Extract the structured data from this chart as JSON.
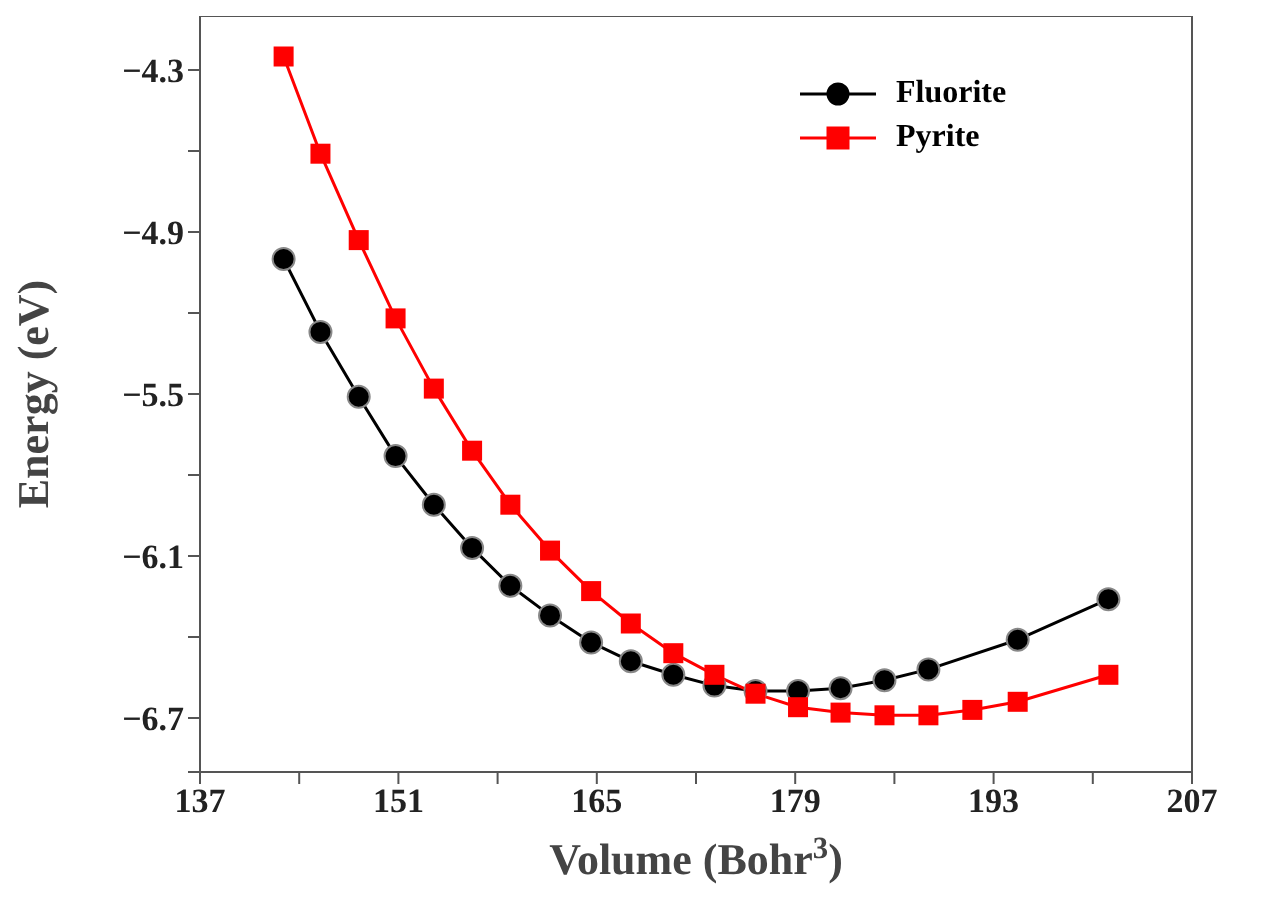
{
  "chart_data": {
    "type": "line",
    "xlabel": "Volume (Bohr$^{3}$)",
    "ylabel": "Energy (eV)",
    "xlim": [
      137,
      207
    ],
    "ylim": [
      -6.9,
      -4.1
    ],
    "xticks": [
      137,
      {
        "value": 144,
        "label": null
      },
      151,
      {
        "value": 158,
        "label": null
      },
      165,
      {
        "value": 172,
        "label": null
      },
      179,
      {
        "value": 186,
        "label": null
      },
      193,
      {
        "value": 200,
        "label": null
      },
      207
    ],
    "yticks": [
      {
        "value": -6.9,
        "label": null
      },
      -6.7,
      {
        "value": -6.4,
        "label": null
      },
      -6.1,
      {
        "value": -5.8,
        "label": null
      },
      -5.5,
      {
        "value": -5.2,
        "label": null
      },
      -4.9,
      {
        "value": -4.6,
        "label": null
      },
      -4.3
    ],
    "legend": "top right",
    "grid": false,
    "line_style": "solid",
    "series": [
      {
        "name": "Fluorite",
        "color": "#000000",
        "marker": "circle",
        "x": [
          142.9,
          145.5,
          148.2,
          150.8,
          153.5,
          156.2,
          158.9,
          161.7,
          164.6,
          167.4,
          170.4,
          173.3,
          176.2,
          179.2,
          182.2,
          185.3,
          188.4,
          194.7,
          201.1
        ],
        "values": [
          -5.0,
          -5.27,
          -5.51,
          -5.73,
          -5.91,
          -6.07,
          -6.21,
          -6.32,
          -6.42,
          -6.49,
          -6.54,
          -6.58,
          -6.6,
          -6.6,
          -6.59,
          -6.56,
          -6.52,
          -6.41,
          -6.26
        ]
      },
      {
        "name": "Pyrite",
        "color": "#ff0000",
        "marker": "square",
        "x": [
          142.9,
          145.5,
          148.2,
          150.8,
          153.5,
          156.2,
          158.9,
          161.7,
          164.6,
          167.4,
          170.4,
          173.3,
          176.2,
          179.2,
          182.2,
          185.3,
          188.4,
          191.5,
          194.7,
          201.1
        ],
        "values": [
          -4.25,
          -4.61,
          -4.93,
          -5.22,
          -5.48,
          -5.71,
          -5.91,
          -6.08,
          -6.23,
          -6.35,
          -6.46,
          -6.54,
          -6.61,
          -6.66,
          -6.68,
          -6.69,
          -6.69,
          -6.67,
          -6.64,
          -6.54
        ]
      }
    ]
  }
}
